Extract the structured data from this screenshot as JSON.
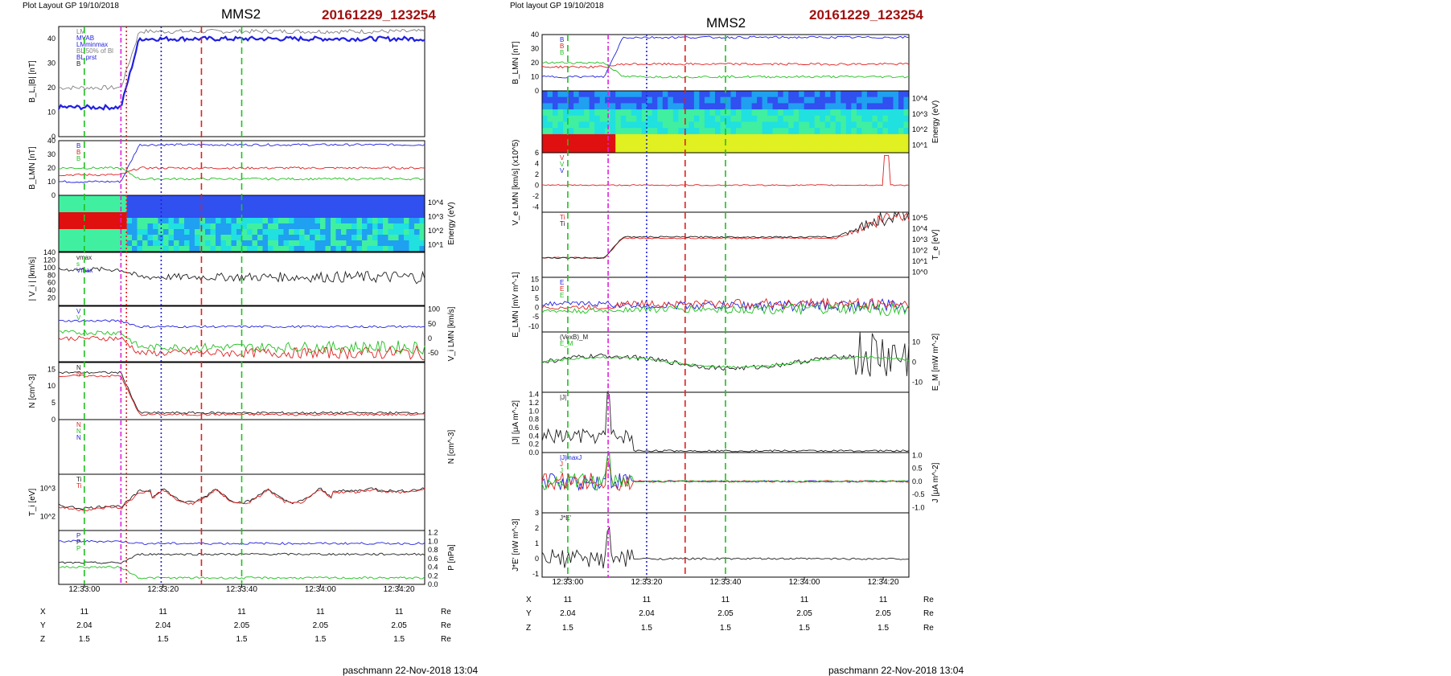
{
  "figures": [
    {
      "header": "Plot Layout GP 19/10/2018",
      "spacecraft": "MMS2",
      "event_id": "20161229_123254",
      "footer": "paschmann 22-Nov-2018 13:04",
      "time_ticks": [
        "12:33:00",
        "12:33:20",
        "12:33:40",
        "12:34:00",
        "12:34:20"
      ],
      "ephemeris": {
        "rows": [
          {
            "label": "X",
            "values": [
              "11",
              "11",
              "11",
              "11",
              "11"
            ],
            "unit": "Re"
          },
          {
            "label": "Y",
            "values": [
              "2.04",
              "2.04",
              "2.05",
              "2.05",
              "2.05"
            ],
            "unit": "Re"
          },
          {
            "label": "Z",
            "values": [
              "1.5",
              "1.5",
              "1.5",
              "1.5",
              "1.5"
            ],
            "unit": "Re"
          }
        ]
      }
    },
    {
      "header": "Plot layout GP 19/10/2018",
      "spacecraft": "MMS2",
      "event_id": "20161229_123254",
      "footer": "paschmann 22-Nov-2018 13:04",
      "time_ticks": [
        "12:33:00",
        "12:33:20",
        "12:33:40",
        "12:34:00",
        "12:34:20"
      ],
      "ephemeris": {
        "rows": [
          {
            "label": "X",
            "values": [
              "11",
              "11",
              "11",
              "11",
              "11"
            ],
            "unit": "Re"
          },
          {
            "label": "Y",
            "values": [
              "2.04",
              "2.04",
              "2.05",
              "2.05",
              "2.05"
            ],
            "unit": "Re"
          },
          {
            "label": "Z",
            "values": [
              "1.5",
              "1.5",
              "1.5",
              "1.5",
              "1.5"
            ],
            "unit": "Re"
          }
        ]
      }
    }
  ],
  "colors": {
    "red": "#e02020",
    "green": "#20c020",
    "blue": "#2020e0",
    "black": "#202020",
    "gray": "#808080",
    "magenta": "#e020e0",
    "title_red": "#a01010"
  },
  "chart_data": [
    {
      "type": "line",
      "figure": 0,
      "panels": [
        {
          "kind": "line",
          "ylabel": "B_L,|B| [nT]",
          "ylabel_side": "left",
          "yticks": [
            "0",
            "10",
            "20",
            "30",
            "40"
          ],
          "ylim": [
            0,
            45
          ],
          "legend": [
            "LM",
            "MVAB",
            "LMminmax",
            "BL 50% of Bl",
            "BL prst",
            "B"
          ],
          "series": [
            {
              "color": "gray",
              "y0": 20,
              "shape": "step_up",
              "y1": 43
            },
            {
              "color": "blue",
              "y0": 12,
              "shape": "step_up",
              "y1": 40,
              "bold": true
            }
          ]
        },
        {
          "kind": "line",
          "ylabel": "B_LMN [nT]",
          "ylabel_side": "left",
          "yticks": [
            "0",
            "10",
            "20",
            "30",
            "40"
          ],
          "ylim": [
            0,
            40
          ],
          "legend": [
            "B",
            "B",
            "B"
          ],
          "series": [
            {
              "color": "blue",
              "y0": 10,
              "shape": "step_up",
              "y1": 37
            },
            {
              "color": "red",
              "y0": 15,
              "shape": "flat",
              "y1": 20
            },
            {
              "color": "green",
              "y0": 20,
              "shape": "step_down",
              "y1": 12
            }
          ]
        },
        {
          "kind": "spectrogram",
          "ylabel": "Energy (eV)",
          "ylabel_side": "right",
          "yticks": [
            "10^4",
            "10^3",
            "10^2",
            "10^1"
          ],
          "pattern": "ion"
        },
        {
          "kind": "line",
          "ylabel": "| V_i | [km/s]",
          "ylabel_side": "left",
          "yticks": [
            "20",
            "40",
            "60",
            "80",
            "100",
            "120",
            "140"
          ],
          "ylim": [
            0,
            140
          ],
          "legend": [
            "vmax",
            "s",
            "Vmax"
          ],
          "series": [
            {
              "color": "black",
              "y0": 95,
              "shape": "noisy_flat",
              "y1": 75
            }
          ]
        },
        {
          "kind": "line",
          "ylabel": "V_i LMN [km/s]",
          "ylabel_side": "right",
          "yticks": [
            "100",
            "50",
            "0",
            "-50"
          ],
          "ylim": [
            -80,
            110
          ],
          "legend": [
            "V",
            "V"
          ],
          "series": [
            {
              "color": "blue",
              "y0": 60,
              "shape": "flat",
              "y1": 40
            },
            {
              "color": "green",
              "y0": 20,
              "shape": "noisy_flat",
              "y1": -30
            },
            {
              "color": "red",
              "y0": 0,
              "shape": "noisy_flat",
              "y1": -50
            }
          ]
        },
        {
          "kind": "line",
          "ylabel": "N [cm^-3]",
          "ylabel_side": "left",
          "yticks": [
            "0",
            "5",
            "10",
            "15"
          ],
          "ylim": [
            0,
            17
          ],
          "legend": [
            "N",
            "N"
          ],
          "series": [
            {
              "color": "black",
              "y0": 14,
              "shape": "step_down",
              "y1": 2
            },
            {
              "color": "red",
              "y0": 13,
              "shape": "step_down",
              "y1": 1.5
            }
          ]
        },
        {
          "kind": "blank",
          "ylabel": "N [cm^-3]",
          "ylabel_side": "right",
          "legend": [
            "N",
            "N",
            "N"
          ]
        },
        {
          "kind": "line",
          "ylabel": "T_i [eV]",
          "ylabel_side": "left",
          "yticks": [
            "10^3",
            "10^2"
          ],
          "ylim": [
            0,
            1
          ],
          "legend": [
            "Ti",
            "Ti"
          ],
          "series": [
            {
              "color": "black",
              "y0": 0.45,
              "shape": "noisy_dip",
              "y1": 0.75
            },
            {
              "color": "red",
              "y0": 0.42,
              "shape": "noisy_dip",
              "y1": 0.73
            }
          ]
        },
        {
          "kind": "line",
          "ylabel": "P [nPa]",
          "ylabel_side": "right",
          "yticks": [
            "0.0",
            "0.2",
            "0.4",
            "0.6",
            "0.8",
            "1.0",
            "1.2"
          ],
          "ylim": [
            0,
            1.25
          ],
          "legend": [
            "P",
            "P",
            "P"
          ],
          "series": [
            {
              "color": "blue",
              "y0": 1.0,
              "shape": "flat",
              "y1": 0.95
            },
            {
              "color": "black",
              "y0": 0.5,
              "shape": "flat",
              "y1": 0.7
            },
            {
              "color": "green",
              "y0": 0.4,
              "shape": "step_down",
              "y1": 0.15
            }
          ]
        }
      ],
      "vlines": [
        {
          "t": 0.07,
          "color": "green",
          "style": "dash"
        },
        {
          "t": 0.17,
          "color": "magenta",
          "style": "dashdot"
        },
        {
          "t": 0.185,
          "color": "red",
          "style": "dot"
        },
        {
          "t": 0.28,
          "color": "blue",
          "style": "dot"
        },
        {
          "t": 0.39,
          "color": "red",
          "style": "dash"
        },
        {
          "t": 0.5,
          "color": "green",
          "style": "dash"
        }
      ]
    },
    {
      "type": "line",
      "figure": 1,
      "panels": [
        {
          "kind": "line",
          "ylabel": "B_LMN [nT]",
          "ylabel_side": "left",
          "yticks": [
            "0",
            "10",
            "20",
            "30",
            "40"
          ],
          "ylim": [
            0,
            40
          ],
          "legend": [
            "B",
            "B",
            "B"
          ],
          "series": [
            {
              "color": "blue",
              "y0": 10,
              "shape": "step_up",
              "y1": 38
            },
            {
              "color": "red",
              "y0": 17,
              "shape": "flat",
              "y1": 19
            },
            {
              "color": "green",
              "y0": 20,
              "shape": "step_down",
              "y1": 10
            }
          ]
        },
        {
          "kind": "spectrogram",
          "ylabel": "Energy (eV)",
          "ylabel_side": "right",
          "yticks": [
            "10^4",
            "10^3",
            "10^2",
            "10^1"
          ],
          "pattern": "electron"
        },
        {
          "kind": "line",
          "ylabel": "V_e LMN [km/s] (x10^5)",
          "ylabel_side": "left",
          "yticks": [
            "6",
            "4",
            "2",
            "0",
            "-2",
            "-4"
          ],
          "ylim": [
            -5,
            6
          ],
          "legend": [
            "V",
            "V",
            "V"
          ],
          "series": [
            {
              "color": "red",
              "y0": 0,
              "shape": "flat_spike",
              "y1": 0
            }
          ]
        },
        {
          "kind": "line",
          "ylabel": "T_e [eV]",
          "ylabel_side": "right",
          "yticks": [
            "10^5",
            "10^4",
            "10^3",
            "10^2",
            "10^1",
            "10^0"
          ],
          "ylim": [
            0,
            1
          ],
          "legend": [
            "Ti",
            "Ti"
          ],
          "series": [
            {
              "color": "red",
              "y0": 0.3,
              "shape": "rise_noise",
              "y1": 0.6
            },
            {
              "color": "black",
              "y0": 0.3,
              "shape": "rise_noise",
              "y1": 0.62
            }
          ]
        },
        {
          "kind": "line",
          "ylabel": "E_LMN [mV m^-1]",
          "ylabel_side": "left",
          "yticks": [
            "15",
            "10",
            "5",
            "0",
            "-5",
            "-10"
          ],
          "ylim": [
            -13,
            16
          ],
          "legend": [
            "E",
            "E",
            "E"
          ],
          "series": [
            {
              "color": "blue",
              "y0": 2,
              "shape": "noisy_flat",
              "y1": 1
            },
            {
              "color": "red",
              "y0": 0,
              "shape": "noisy_flat",
              "y1": 2
            },
            {
              "color": "green",
              "y0": -2,
              "shape": "noisy_flat",
              "y1": -1
            }
          ]
        },
        {
          "kind": "line",
          "ylabel": "E_M [mW m^-2]",
          "ylabel_side": "right",
          "yticks": [
            "10",
            "0",
            "-10"
          ],
          "ylim": [
            -15,
            15
          ],
          "legend": [
            "(VexB)_M",
            "E_M"
          ],
          "series": [
            {
              "color": "black",
              "y0": 0,
              "shape": "wave_end_noise",
              "y1": 0
            },
            {
              "color": "green",
              "y0": 0,
              "shape": "wave",
              "y1": 0
            }
          ]
        },
        {
          "kind": "line",
          "ylabel": "|J| [μA m^-2]",
          "ylabel_side": "left",
          "yticks": [
            "0.0",
            "0.2",
            "0.4",
            "0.6",
            "0.8",
            "1.0",
            "1.2",
            "1.4"
          ],
          "ylim": [
            0,
            1.45
          ],
          "legend": [
            "|J|"
          ],
          "series": [
            {
              "color": "black",
              "y0": 0.2,
              "shape": "spiky_decay",
              "y1": 0.02
            }
          ]
        },
        {
          "kind": "line",
          "ylabel": "J [μA m^-2]",
          "ylabel_side": "right",
          "yticks": [
            "1.0",
            "0.5",
            "0.0",
            "-0.5",
            "-1.0"
          ],
          "ylim": [
            -1.2,
            1.1
          ],
          "legend": [
            "|J|maxJ",
            "J",
            "J"
          ],
          "series": [
            {
              "color": "blue",
              "y0": 0,
              "shape": "spiky_decay_signed",
              "y1": 0
            },
            {
              "color": "red",
              "y0": 0,
              "shape": "spiky_decay_signed",
              "y1": 0
            },
            {
              "color": "green",
              "y0": 0,
              "shape": "spiky_decay_signed",
              "y1": 0
            }
          ]
        },
        {
          "kind": "line",
          "ylabel": "J*E' [nW m^-3]",
          "ylabel_side": "left",
          "yticks": [
            "3",
            "2",
            "1",
            "0",
            "-1"
          ],
          "ylim": [
            -1.2,
            3
          ],
          "legend": [
            "J*E'"
          ],
          "series": [
            {
              "color": "black",
              "y0": 0,
              "shape": "spiky_decay_signed",
              "y1": 0
            }
          ]
        }
      ],
      "vlines": [
        {
          "t": 0.07,
          "color": "green",
          "style": "dash"
        },
        {
          "t": 0.18,
          "color": "magenta",
          "style": "dashdot"
        },
        {
          "t": 0.285,
          "color": "blue",
          "style": "dot"
        },
        {
          "t": 0.39,
          "color": "red",
          "style": "dash"
        },
        {
          "t": 0.5,
          "color": "green",
          "style": "dash"
        }
      ]
    }
  ]
}
